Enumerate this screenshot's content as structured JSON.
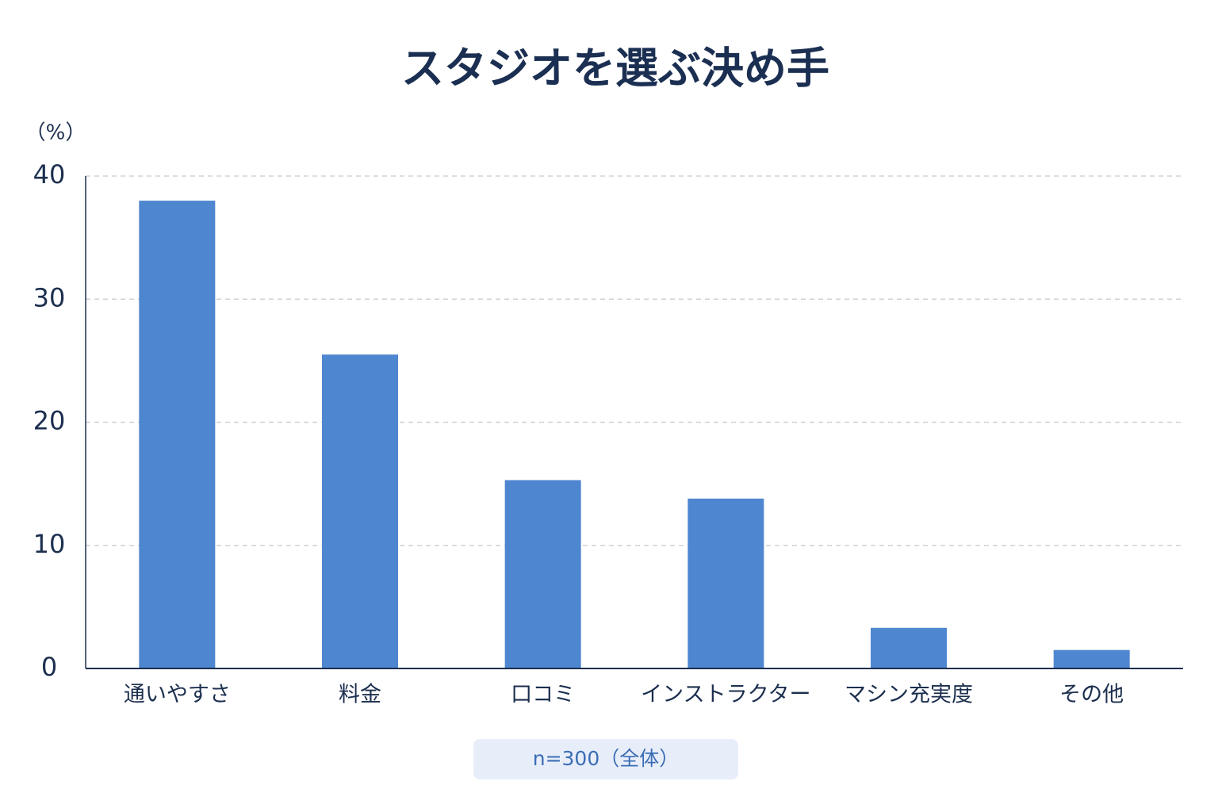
{
  "chart_data": {
    "type": "bar",
    "title": "スタジオを選ぶ決め手",
    "y_label": "（%）",
    "categories": [
      "通いやすさ",
      "料金",
      "口コミ",
      "インストラクター",
      "マシン充実度",
      "その他"
    ],
    "values": [
      38,
      25.5,
      15.3,
      13.8,
      3.3,
      1.5
    ],
    "color": "#4f86d0",
    "ylim": [
      0,
      40
    ],
    "yticks": [
      0,
      10,
      20,
      30,
      40
    ],
    "grid": true,
    "note": "n=300（全体）"
  }
}
